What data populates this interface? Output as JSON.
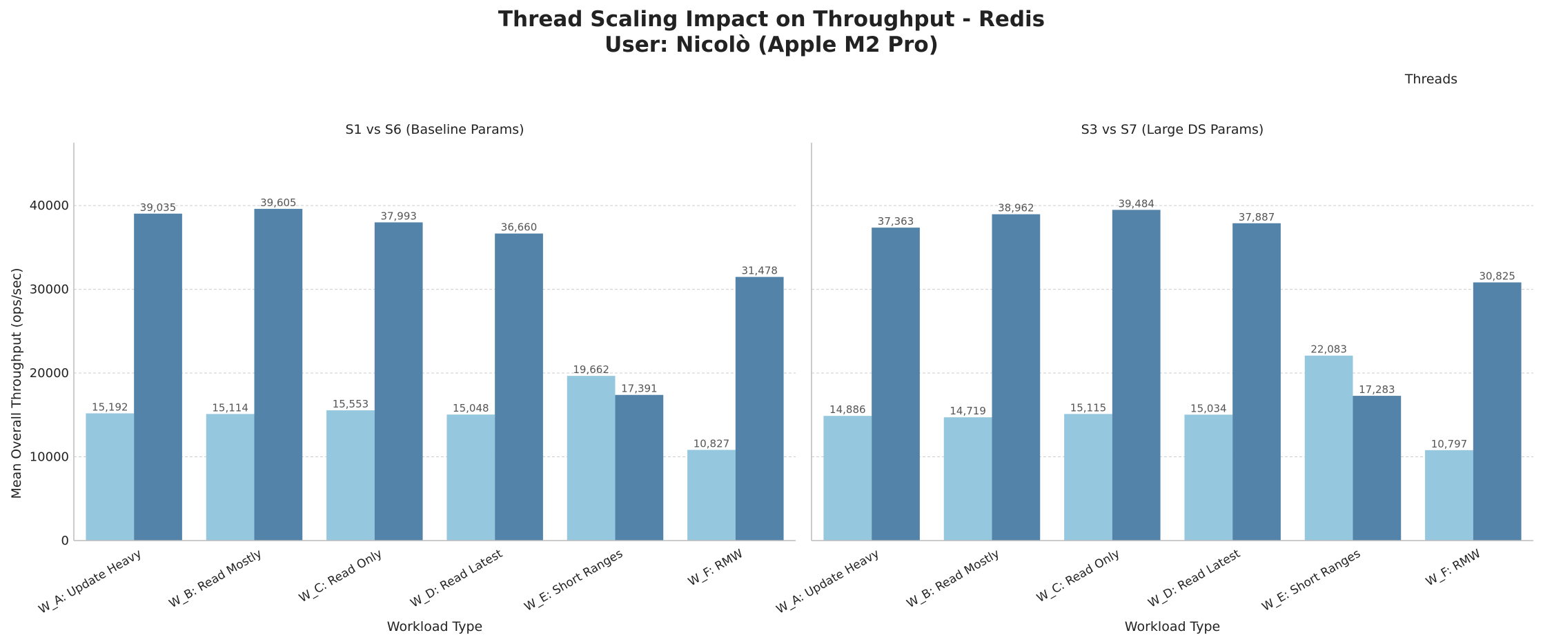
{
  "chart_data": {
    "type": "bar",
    "title": "Thread Scaling Impact on Throughput - Redis",
    "subtitle": "User: Nicolò (Apple M2 Pro)",
    "legend_title": "Threads",
    "legend_placement": "top-right",
    "ylabel": "Mean Overall Throughput (ops/sec)",
    "xlabel": "Workload Type",
    "ylim": [
      0,
      47500
    ],
    "yticks": [
      0,
      10000,
      20000,
      30000,
      40000
    ],
    "grid": true,
    "colors": [
      "#95c8de",
      "#5383a8"
    ],
    "categories": [
      "W_A: Update Heavy",
      "W_B: Read Mostly",
      "W_C: Read Only",
      "W_D: Read Latest",
      "W_E: Short Ranges",
      "W_F: RMW"
    ],
    "panels": [
      {
        "title": "S1 vs S6 (Baseline Params)",
        "series": [
          {
            "values": [
              15192,
              15114,
              15553,
              15048,
              19662,
              10827
            ],
            "labels": [
              "15,192",
              "15,114",
              "15,553",
              "15,048",
              "19,662",
              "10,827"
            ]
          },
          {
            "values": [
              39035,
              39605,
              37993,
              36660,
              17391,
              31478
            ],
            "labels": [
              "39,035",
              "39,605",
              "37,993",
              "36,660",
              "17,391",
              "31,478"
            ]
          }
        ]
      },
      {
        "title": "S3 vs S7 (Large DS Params)",
        "series": [
          {
            "values": [
              14886,
              14719,
              15115,
              15034,
              22083,
              10797
            ],
            "labels": [
              "14,886",
              "14,719",
              "15,115",
              "15,034",
              "22,083",
              "10,797"
            ]
          },
          {
            "values": [
              37363,
              38962,
              39484,
              37887,
              17283,
              30825
            ],
            "labels": [
              "37,363",
              "38,962",
              "39,484",
              "37,887",
              "17,283",
              "30,825"
            ]
          }
        ]
      }
    ]
  }
}
